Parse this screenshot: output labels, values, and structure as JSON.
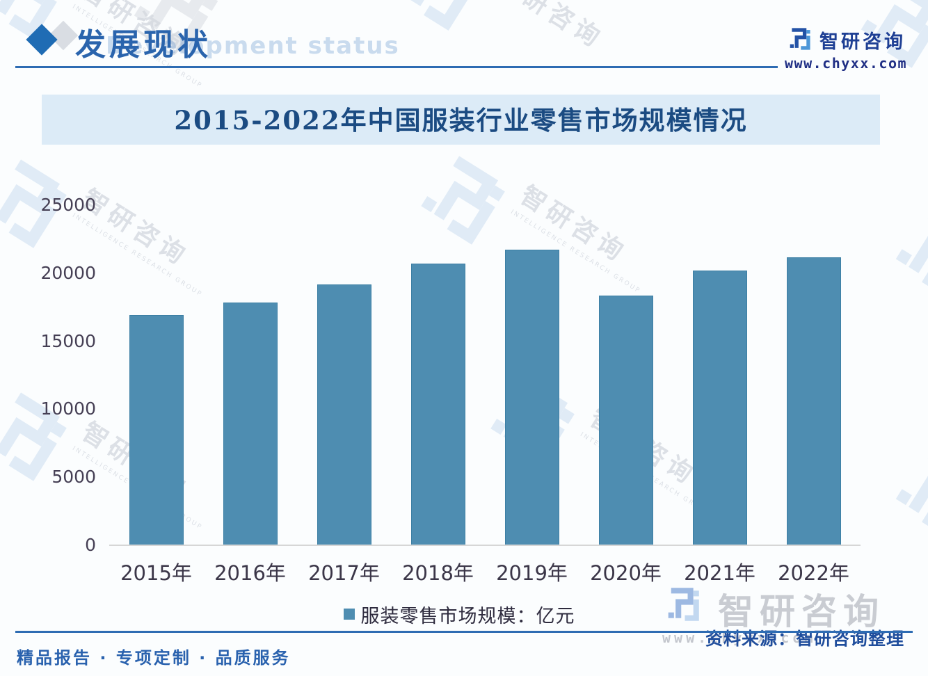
{
  "header": {
    "title": "发展现状",
    "subtitle_watermark": "Development status",
    "brand_name": "智研咨询",
    "brand_url": "www.chyxx.com"
  },
  "chart_data": {
    "type": "bar",
    "title": "2015-2022年中国服装行业零售市场规模情况",
    "categories": [
      "2015年",
      "2016年",
      "2017年",
      "2018年",
      "2019年",
      "2020年",
      "2021年",
      "2022年"
    ],
    "values": [
      16900,
      17850,
      19150,
      20700,
      21750,
      18350,
      20200,
      21150
    ],
    "series_name": "服装零售市场规模：亿元",
    "unit": "亿元",
    "xlabel": "",
    "ylabel": "",
    "ylim": [
      0,
      25000
    ],
    "yticks": [
      0,
      5000,
      10000,
      15000,
      20000,
      25000
    ],
    "grid": false,
    "legend_position": "bottom",
    "bar_color": "#4e8db1"
  },
  "legend": {
    "label": "服装零售市场规模：亿元"
  },
  "footer": {
    "tagline": "精品报告 · 专项定制 · 品质服务",
    "source": "资料来源：智研咨询整理",
    "brand_name": "智研咨询",
    "brand_url": "www.chyxx.com"
  },
  "watermark": {
    "brand": "智研咨询",
    "caption": "INTELLIGENCE RESEARCH GROUP"
  },
  "colors": {
    "bar": "#4e8db1",
    "banner_bg": "#dcebf7",
    "accent_blue": "#2e6cb3",
    "title_navy": "#1b4b82",
    "source_blue": "#1f4d9c"
  }
}
